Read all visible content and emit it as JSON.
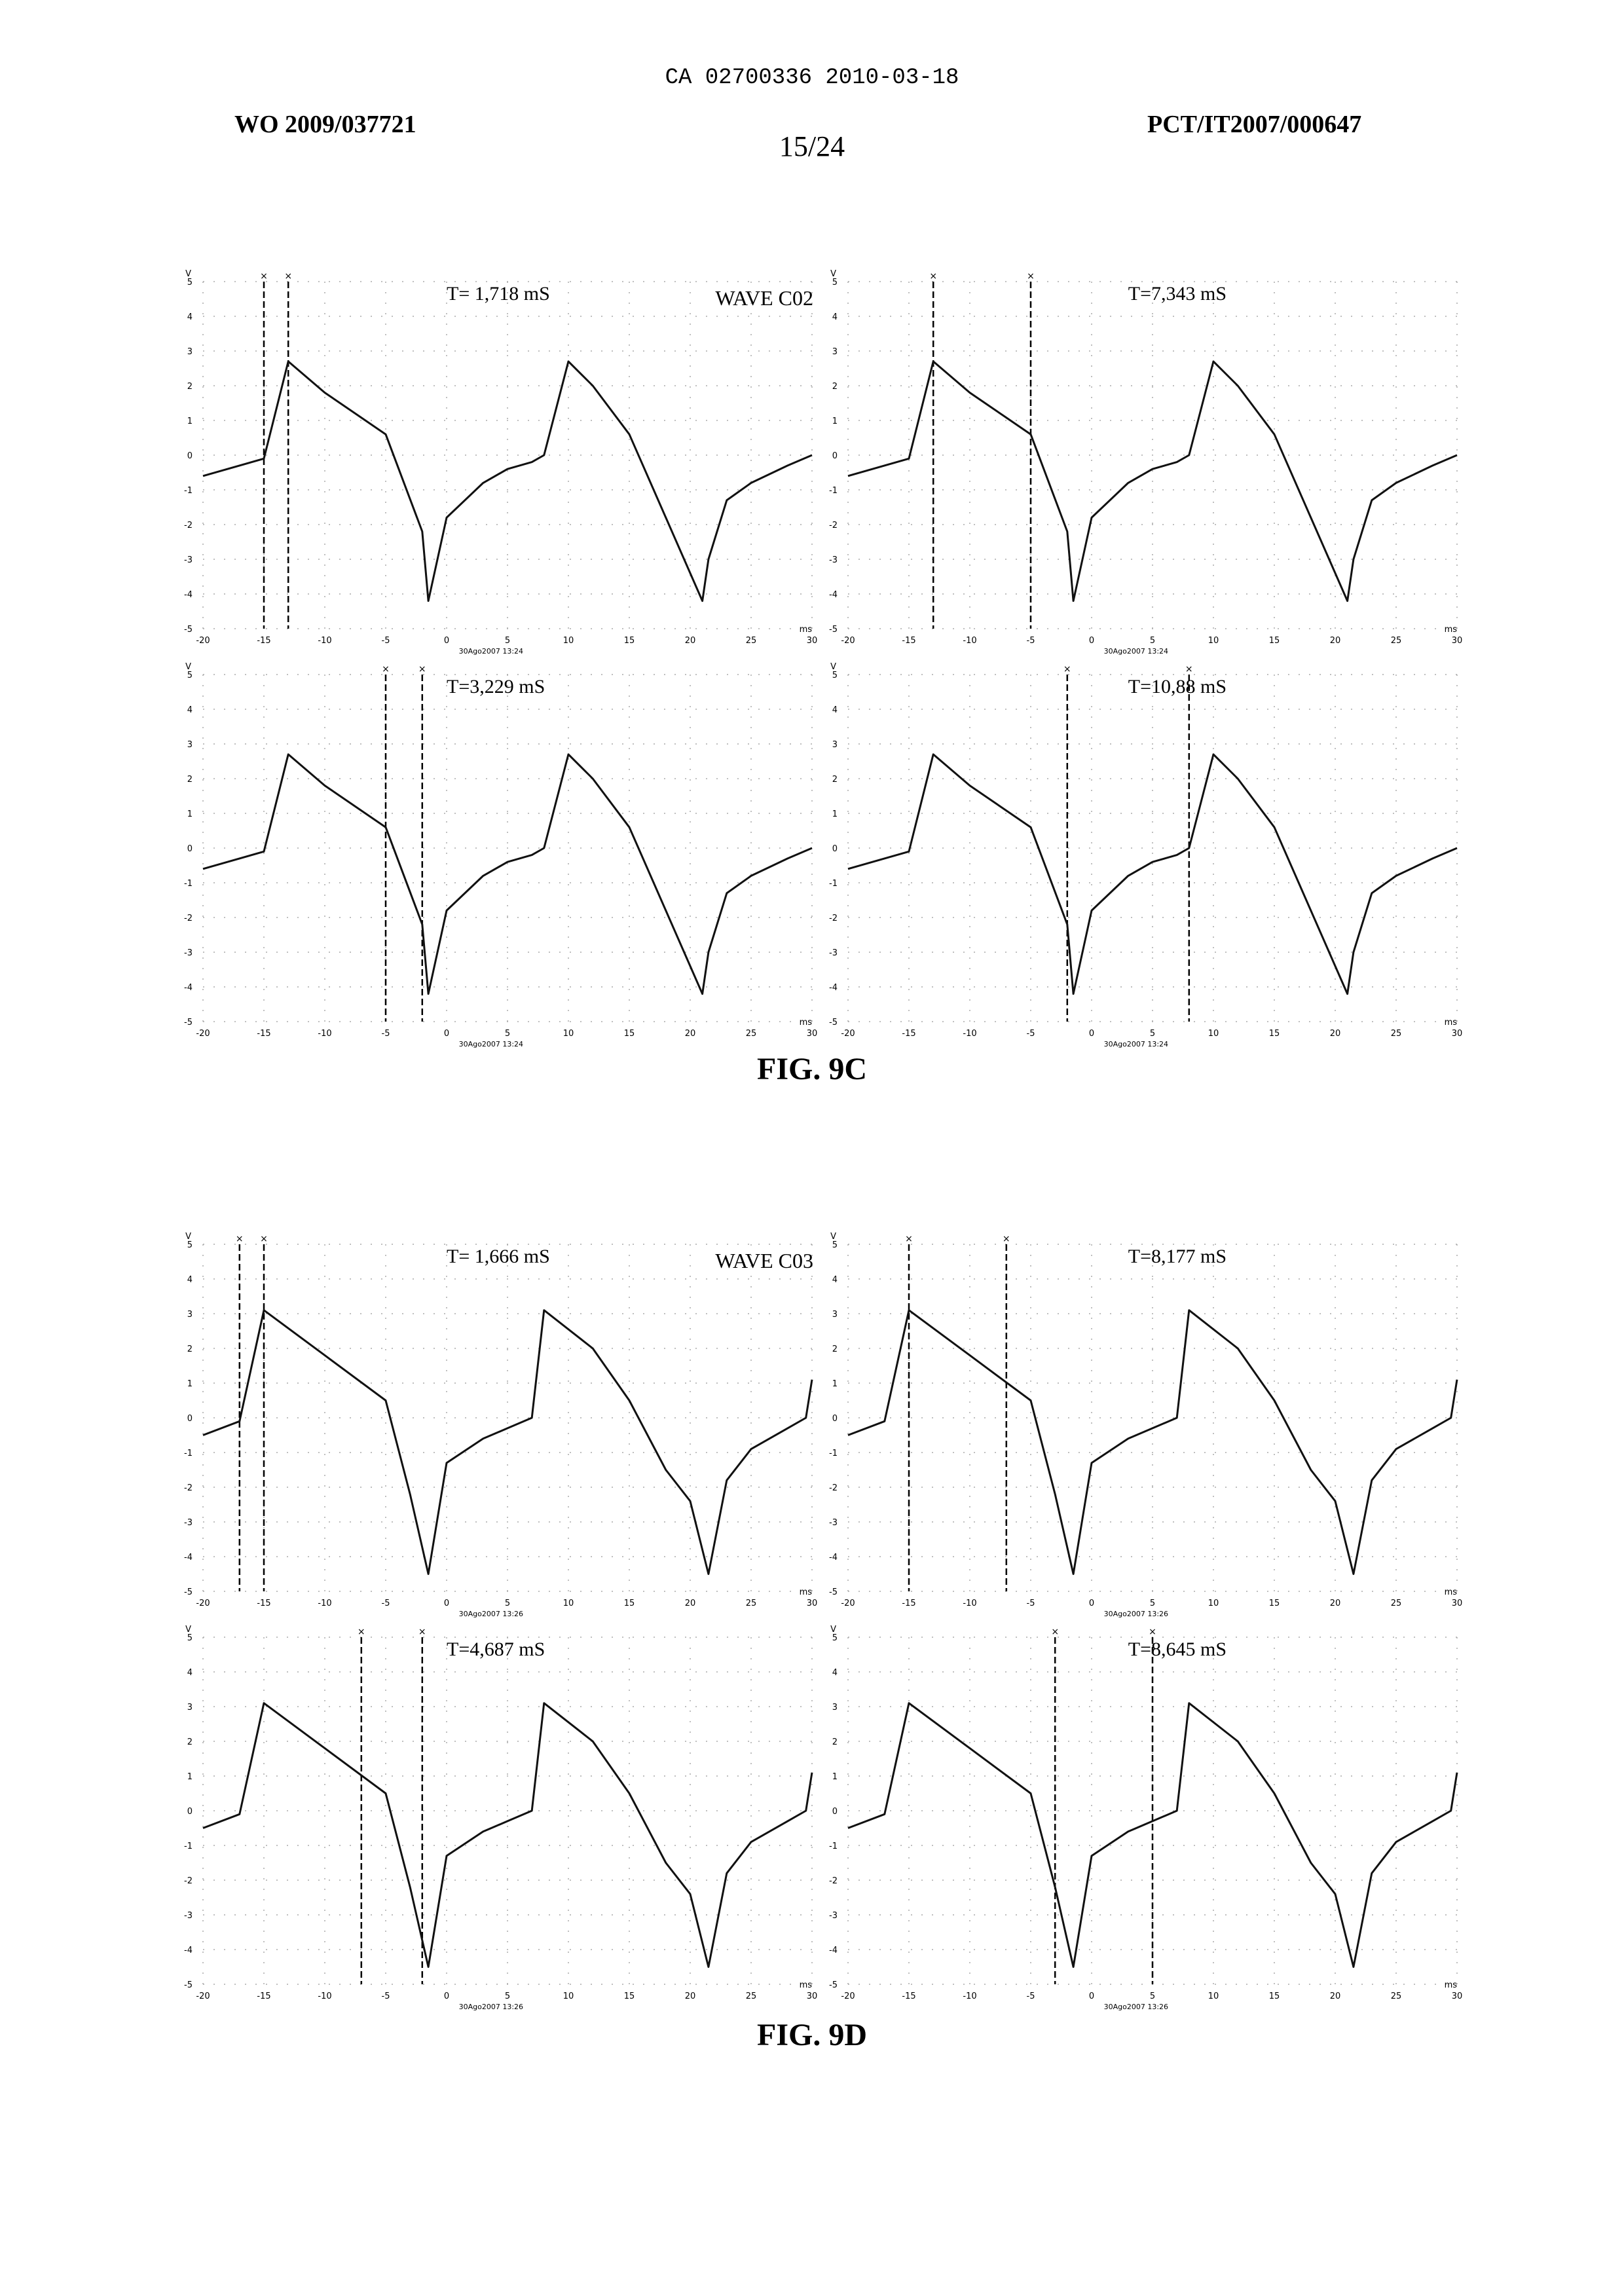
{
  "header": {
    "ca_line": "CA 02700336 2010-03-18",
    "pub_number": "WO 2009/037721",
    "app_number": "PCT/IT2007/000647",
    "page": "15/24"
  },
  "figures": [
    {
      "label": "FIG. 9C",
      "wave_label": "WAVE C02",
      "datestamp": "30Ago2007 13:24",
      "panels": [
        {
          "t_label": "T= 1,718  mS",
          "cursors": [
            -15,
            -13
          ]
        },
        {
          "t_label": "T=7,343  mS",
          "cursors": [
            -13,
            -5
          ]
        },
        {
          "t_label": "T=3,229  mS",
          "cursors": [
            -5,
            -2
          ]
        },
        {
          "t_label": "T=10,88  mS",
          "cursors": [
            -2,
            8
          ]
        }
      ]
    },
    {
      "label": "FIG. 9D",
      "wave_label": "WAVE C03",
      "datestamp": "30Ago2007 13:26",
      "panels": [
        {
          "t_label": "T= 1,666 mS",
          "cursors": [
            -17,
            -15
          ]
        },
        {
          "t_label": "T=8,177  mS",
          "cursors": [
            -15,
            -7
          ]
        },
        {
          "t_label": "T=4,687  mS",
          "cursors": [
            -7,
            -2
          ]
        },
        {
          "t_label": "T=8,645  mS",
          "cursors": [
            -3,
            5
          ]
        }
      ]
    }
  ],
  "chart_data": [
    {
      "type": "line",
      "title": "FIG. 9C",
      "xlabel": "ms",
      "ylabel": "V",
      "xlim": [
        -20,
        30
      ],
      "ylim": [
        -5,
        5
      ],
      "x_ticks": [
        -20,
        -15,
        -10,
        -5,
        0,
        5,
        10,
        15,
        20,
        25,
        30
      ],
      "y_ticks": [
        5,
        4,
        3,
        2,
        1,
        0,
        -1,
        -2,
        -3,
        -4,
        -5
      ],
      "series": [
        {
          "x": [
            -20,
            -15,
            -13,
            -10,
            -5,
            -2,
            -1.5,
            0,
            3,
            5,
            7,
            8,
            10,
            12,
            15,
            18,
            21,
            21.5,
            23,
            25,
            28,
            30
          ],
          "y": [
            -0.6,
            -0.1,
            2.7,
            1.8,
            0.6,
            -2.2,
            -4.2,
            -1.8,
            -0.8,
            -0.4,
            -0.2,
            0,
            2.7,
            2.0,
            0.6,
            -1.8,
            -4.2,
            -3.0,
            -1.3,
            -0.8,
            -0.3,
            0
          ]
        }
      ]
    },
    {
      "type": "line",
      "title": "FIG. 9D",
      "xlabel": "ms",
      "ylabel": "V",
      "xlim": [
        -20,
        30
      ],
      "ylim": [
        -5,
        5
      ],
      "x_ticks": [
        -20,
        -15,
        -10,
        -5,
        0,
        5,
        10,
        15,
        20,
        25,
        30
      ],
      "y_ticks": [
        5,
        4,
        3,
        2,
        1,
        0,
        -1,
        -2,
        -3,
        -4,
        -5
      ],
      "series": [
        {
          "x": [
            -20,
            -17,
            -15,
            -10,
            -5,
            -3,
            -1.5,
            0,
            3,
            5,
            7,
            8,
            12,
            15,
            18,
            20,
            21.5,
            23,
            25,
            28,
            29.5,
            30
          ],
          "y": [
            -0.5,
            -0.1,
            3.1,
            1.8,
            0.5,
            -2.2,
            -4.5,
            -1.3,
            -0.6,
            -0.3,
            0,
            3.1,
            2.0,
            0.5,
            -1.5,
            -2.4,
            -4.5,
            -1.8,
            -0.9,
            -0.3,
            0,
            1.1
          ]
        }
      ]
    }
  ]
}
